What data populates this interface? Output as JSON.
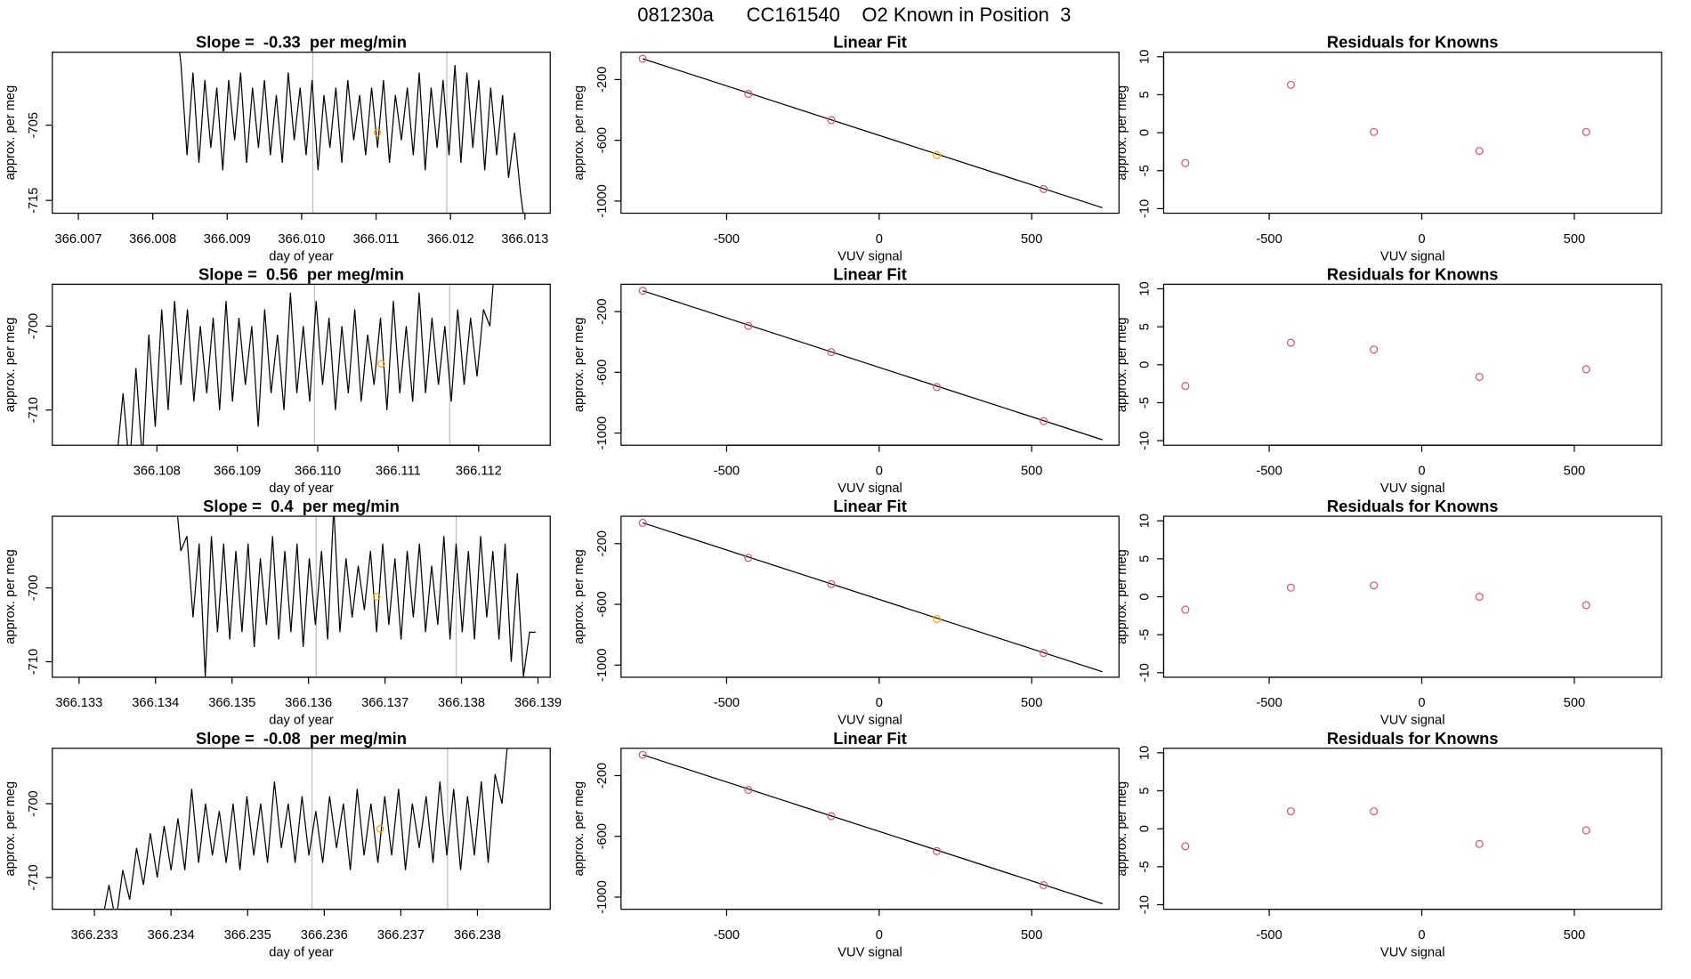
{
  "title": "081230a      CC161540    O2 Known in Position  3",
  "chart_data": [
    {
      "type": "line",
      "title": "Slope =  -0.33  per meg/min",
      "xlabel": "day of year",
      "ylabel": "approx. per meg",
      "color": "#000000",
      "x": [
        366.0083,
        366.00838,
        366.00846,
        366.00854,
        366.00862,
        366.0087,
        366.00878,
        366.00886,
        366.00894,
        366.00902,
        366.0091,
        366.00918,
        366.00926,
        366.00934,
        366.00942,
        366.0095,
        366.00958,
        366.00966,
        366.00974,
        366.00982,
        366.0099,
        366.00998,
        366.01006,
        366.01014,
        366.01022,
        366.0103,
        366.01038,
        366.01046,
        366.01054,
        366.01062,
        366.0107,
        366.01078,
        366.01086,
        366.01094,
        366.01102,
        366.0111,
        366.01118,
        366.01126,
        366.01134,
        366.01142,
        366.0115,
        366.01158,
        366.01166,
        366.01174,
        366.01182,
        366.0119,
        366.01198,
        366.01206,
        366.01214,
        366.01222,
        366.0123,
        366.01238,
        366.01246,
        366.01254,
        366.01262,
        366.0127,
        366.01278,
        366.01286,
        366.01294,
        366.01302
      ],
      "values": [
        -690,
        -697,
        -709,
        -698,
        -710,
        -699,
        -708,
        -700,
        -711,
        -699,
        -707,
        -698,
        -710,
        -700,
        -708,
        -699,
        -709,
        -701,
        -710,
        -698,
        -707,
        -700,
        -709,
        -699,
        -711,
        -701,
        -708,
        -700,
        -710,
        -699,
        -707,
        -701,
        -709,
        -700,
        -708,
        -699,
        -710,
        -701,
        -707,
        -700,
        -709,
        -698,
        -711,
        -700,
        -708,
        -699,
        -709,
        -697,
        -710,
        -698,
        -708,
        -699,
        -711,
        -700,
        -709,
        -701,
        -712,
        -706,
        -714,
        -720
      ],
      "xlim": [
        366.00665,
        366.01334
      ],
      "ylim": [
        -716.7,
        -695.3
      ],
      "xticks": [
        366.007,
        366.008,
        366.009,
        {
          "value": 366.01,
          "label": "366.010"
        },
        366.011,
        366.012,
        366.013
      ],
      "yticks": [
        -705,
        -715
      ],
      "vlines": [
        366.01015,
        366.01195
      ],
      "vline_color": "#bebebe",
      "highlight": {
        "x": 366.01102,
        "y": -706,
        "color": "#FFA500"
      }
    },
    {
      "type": "scatter",
      "title": "Linear Fit",
      "xlabel": "VUV signal",
      "ylabel": "approx. per meg",
      "x": [
        -775,
        -429,
        -157,
        189,
        539
      ],
      "values": [
        -63,
        -294,
        -467,
        -697,
        -921
      ],
      "colors": [
        "#DF536B",
        "#DF536B",
        "#DF536B",
        "#FFA500",
        "#DF536B"
      ],
      "fit": {
        "x": [
          -775,
          732
        ],
        "y": [
          -63,
          -1044
        ],
        "color": "#000000"
      },
      "xlim": [
        -846,
        786
      ],
      "ylim": [
        -1080,
        -20
      ],
      "xticks": [
        -500,
        0,
        500
      ],
      "yticks": [
        -200,
        -600,
        -1000
      ]
    },
    {
      "type": "scatter",
      "title": "Residuals for Knowns",
      "xlabel": "VUV signal",
      "ylabel": "approx. per meg",
      "x": [
        -775,
        -429,
        -157,
        189,
        539
      ],
      "values": [
        -4,
        6.3,
        0.1,
        -2.4,
        0.1
      ],
      "color": "#DF536B",
      "xlim": [
        -846,
        786
      ],
      "ylim": [
        -10.6,
        10.6
      ],
      "xticks": [
        -500,
        0,
        500
      ],
      "yticks": [
        10,
        5,
        0,
        -5,
        -10
      ]
    },
    {
      "type": "line",
      "title": "Slope =  0.56  per meg/min",
      "xlabel": "day of year",
      "ylabel": "approx. per meg",
      "color": "#000000",
      "x": [
        366.1075,
        366.10758,
        366.10766,
        366.10774,
        366.10782,
        366.1079,
        366.10798,
        366.10806,
        366.10814,
        366.10822,
        366.1083,
        366.10838,
        366.10846,
        366.10854,
        366.10862,
        366.1087,
        366.10878,
        366.10886,
        366.10894,
        366.10902,
        366.1091,
        366.10918,
        366.10926,
        366.10934,
        366.10942,
        366.1095,
        366.10958,
        366.10966,
        366.10974,
        366.10982,
        366.1099,
        366.10998,
        366.11006,
        366.11014,
        366.11022,
        366.1103,
        366.11038,
        366.11046,
        366.11054,
        366.11062,
        366.1107,
        366.11078,
        366.11086,
        366.11094,
        366.11102,
        366.1111,
        366.11118,
        366.11126,
        366.11134,
        366.11142,
        366.1115,
        366.11158,
        366.11166,
        366.11174,
        366.11182,
        366.1119,
        366.11198,
        366.11206,
        366.11214,
        366.11222
      ],
      "values": [
        -716,
        -708,
        -717,
        -705,
        -716,
        -701,
        -712,
        -698,
        -710,
        -697,
        -707,
        -698,
        -709,
        -700,
        -708,
        -699,
        -710,
        -697,
        -709,
        -699,
        -707,
        -700,
        -712,
        -698,
        -708,
        -701,
        -710,
        -696,
        -708,
        -700,
        -709,
        -697,
        -707,
        -699,
        -710,
        -700,
        -708,
        -698,
        -709,
        -701,
        -707,
        -699,
        -710,
        -697,
        -708,
        -700,
        -709,
        -696,
        -708,
        -699,
        -707,
        -700,
        -709,
        -698,
        -707,
        -699,
        -706,
        -698,
        -700,
        -690
      ],
      "xlim": [
        366.1067,
        366.11289
      ],
      "ylim": [
        -714.2,
        -695
      ],
      "xticks": [
        366.108,
        366.109,
        {
          "value": 366.11,
          "label": "366.110"
        },
        366.111,
        366.112
      ],
      "yticks": [
        -700,
        -710
      ],
      "vlines": [
        366.10996,
        366.11164
      ],
      "vline_color": "#bebebe",
      "highlight": {
        "x": 366.11079,
        "y": -704.5,
        "color": "#FFA500"
      }
    },
    {
      "type": "scatter",
      "title": "Linear Fit",
      "xlabel": "VUV signal",
      "ylabel": "approx. per meg",
      "x": [
        -775,
        -429,
        -157,
        189,
        539
      ],
      "values": [
        -63,
        -294,
        -467,
        -697,
        -921
      ],
      "colors": [
        "#DF536B",
        "#DF536B",
        "#DF536B",
        "#DF536B",
        "#DF536B"
      ],
      "fit": {
        "x": [
          -775,
          732
        ],
        "y": [
          -63,
          -1044
        ],
        "color": "#000000"
      },
      "xlim": [
        -846,
        786
      ],
      "ylim": [
        -1080,
        -20
      ],
      "xticks": [
        -500,
        0,
        500
      ],
      "yticks": [
        -200,
        -600,
        -1000
      ]
    },
    {
      "type": "scatter",
      "title": "Residuals for Knowns",
      "xlabel": "VUV signal",
      "ylabel": "approx. per meg",
      "x": [
        -775,
        -429,
        -157,
        189,
        539
      ],
      "values": [
        -2.8,
        2.9,
        2.0,
        -1.6,
        -0.6
      ],
      "color": "#DF536B",
      "xlim": [
        -846,
        786
      ],
      "ylim": [
        -10.6,
        10.6
      ],
      "xticks": [
        -500,
        0,
        500
      ],
      "yticks": [
        10,
        5,
        0,
        -5,
        -10
      ]
    },
    {
      "type": "line",
      "title": "Slope =  0.4  per meg/min",
      "xlabel": "day of year",
      "ylabel": "approx. per meg",
      "color": "#000000",
      "x": [
        366.13425,
        366.13433,
        366.13441,
        366.13449,
        366.13457,
        366.13465,
        366.13473,
        366.13481,
        366.13489,
        366.13497,
        366.13505,
        366.13513,
        366.13521,
        366.13529,
        366.13537,
        366.13545,
        366.13553,
        366.13561,
        366.13569,
        366.13577,
        366.13585,
        366.13593,
        366.13601,
        366.13609,
        366.13617,
        366.13625,
        366.13633,
        366.13641,
        366.13649,
        366.13657,
        366.13665,
        366.13673,
        366.13681,
        366.13689,
        366.13697,
        366.13705,
        366.13713,
        366.13721,
        366.13729,
        366.13737,
        366.13745,
        366.13753,
        366.13761,
        366.13769,
        366.13777,
        366.13785,
        366.13793,
        366.13801,
        366.13809,
        366.13817,
        366.13825,
        366.13833,
        366.13841,
        366.13849,
        366.13857,
        366.13865,
        366.13873,
        366.13881,
        366.13889,
        366.13897
      ],
      "values": [
        -686,
        -695,
        -693,
        -704,
        -694,
        -712,
        -693,
        -706,
        -694,
        -707,
        -695,
        -706,
        -694,
        -708,
        -696,
        -705,
        -693,
        -707,
        -695,
        -706,
        -694,
        -708,
        -696,
        -705,
        -695,
        -707,
        -689,
        -706,
        -696,
        -704,
        -697,
        -703,
        -695,
        -706,
        -694,
        -705,
        -696,
        -707,
        -695,
        -704,
        -694,
        -706,
        -697,
        -705,
        -693,
        -707,
        -694,
        -706,
        -695,
        -707,
        -693,
        -704,
        -695,
        -707,
        -694,
        -710,
        -698,
        -712,
        -706,
        -706
      ],
      "xlim": [
        366.13265,
        366.13916
      ],
      "ylim": [
        -712.1,
        -690.3
      ],
      "xticks": [
        366.133,
        366.134,
        366.135,
        366.136,
        366.137,
        366.138,
        366.139
      ],
      "yticks": [
        -700,
        -710
      ],
      "vlines": [
        366.1361,
        366.13793
      ],
      "vline_color": "#bebebe",
      "highlight": {
        "x": 366.13689,
        "y": -701.2,
        "color": "#FFA500"
      }
    },
    {
      "type": "scatter",
      "title": "Linear Fit",
      "xlabel": "VUV signal",
      "ylabel": "approx. per meg",
      "x": [
        -775,
        -429,
        -157,
        189,
        539
      ],
      "values": [
        -63,
        -294,
        -467,
        -697,
        -921
      ],
      "colors": [
        "#DF536B",
        "#DF536B",
        "#DF536B",
        "#FFA500",
        "#DF536B"
      ],
      "fit": {
        "x": [
          -775,
          732
        ],
        "y": [
          -63,
          -1044
        ],
        "color": "#000000"
      },
      "xlim": [
        -846,
        786
      ],
      "ylim": [
        -1080,
        -20
      ],
      "xticks": [
        -500,
        0,
        500
      ],
      "yticks": [
        -200,
        -600,
        -1000
      ]
    },
    {
      "type": "scatter",
      "title": "Residuals for Knowns",
      "xlabel": "VUV signal",
      "ylabel": "approx. per meg",
      "x": [
        -775,
        -429,
        -157,
        189,
        539
      ],
      "values": [
        -1.7,
        1.2,
        1.5,
        0.0,
        -1.1
      ],
      "color": "#DF536B",
      "xlim": [
        -846,
        786
      ],
      "ylim": [
        -10.6,
        10.6
      ],
      "xticks": [
        -500,
        0,
        500
      ],
      "yticks": [
        10,
        5,
        0,
        -5,
        -10
      ]
    },
    {
      "type": "line",
      "title": "Slope =  -0.08  per meg/min",
      "xlabel": "day of year",
      "ylabel": "approx. per meg",
      "color": "#000000",
      "x": [
        366.2331,
        366.23319,
        366.23328,
        366.23337,
        366.23346,
        366.23355,
        366.23364,
        366.23373,
        366.23382,
        366.23391,
        366.234,
        366.23409,
        366.23418,
        366.23427,
        366.23436,
        366.23445,
        366.23454,
        366.23463,
        366.23472,
        366.23481,
        366.2349,
        366.23499,
        366.23508,
        366.23517,
        366.23526,
        366.23535,
        366.23544,
        366.23553,
        366.23562,
        366.23571,
        366.2358,
        366.23589,
        366.23598,
        366.23607,
        366.23616,
        366.23625,
        366.23634,
        366.23643,
        366.23652,
        366.23661,
        366.2367,
        366.23679,
        366.23688,
        366.23697,
        366.23706,
        366.23715,
        366.23724,
        366.23733,
        366.23742,
        366.23751,
        366.2376,
        366.23769,
        366.23778,
        366.23787,
        366.23796,
        366.23805,
        366.23814,
        366.23823,
        366.23832,
        366.23841
      ],
      "values": [
        -716,
        -711,
        -716,
        -709,
        -713,
        -706,
        -711,
        -704,
        -710,
        -703,
        -709,
        -702,
        -709,
        -698,
        -708,
        -700,
        -707,
        -701,
        -708,
        -700,
        -709,
        -699,
        -707,
        -700,
        -708,
        -697,
        -706,
        -700,
        -708,
        -699,
        -707,
        -701,
        -708,
        -699,
        -706,
        -700,
        -709,
        -698,
        -707,
        -700,
        -708,
        -699,
        -707,
        -698,
        -709,
        -700,
        -706,
        -699,
        -708,
        -697,
        -707,
        -698,
        -709,
        -699,
        -707,
        -697,
        -708,
        -696,
        -700,
        -690
      ],
      "xlim": [
        366.23245,
        366.23895
      ],
      "ylim": [
        -714.3,
        -692.5
      ],
      "xticks": [
        366.233,
        366.234,
        366.235,
        366.236,
        366.237,
        366.238
      ],
      "yticks": [
        -700,
        -710
      ],
      "vlines": [
        366.23584,
        366.23761
      ],
      "vline_color": "#bebebe",
      "highlight": {
        "x": 366.23673,
        "y": -703.4,
        "color": "#FFA500"
      }
    },
    {
      "type": "scatter",
      "title": "Linear Fit",
      "xlabel": "VUV signal",
      "ylabel": "approx. per meg",
      "x": [
        -775,
        -429,
        -157,
        189,
        539
      ],
      "values": [
        -63,
        -294,
        -467,
        -697,
        -921
      ],
      "colors": [
        "#DF536B",
        "#DF536B",
        "#DF536B",
        "#DF536B",
        "#DF536B"
      ],
      "fit": {
        "x": [
          -775,
          732
        ],
        "y": [
          -63,
          -1044
        ],
        "color": "#000000"
      },
      "xlim": [
        -846,
        786
      ],
      "ylim": [
        -1080,
        -20
      ],
      "xticks": [
        -500,
        0,
        500
      ],
      "yticks": [
        -200,
        -600,
        -1000
      ]
    },
    {
      "type": "scatter",
      "title": "Residuals for Knowns",
      "xlabel": "VUV signal",
      "ylabel": "approx. per meg",
      "x": [
        -775,
        -429,
        -157,
        189,
        539
      ],
      "values": [
        -2.3,
        2.3,
        2.3,
        -2.0,
        -0.2
      ],
      "color": "#DF536B",
      "xlim": [
        -846,
        786
      ],
      "ylim": [
        -10.6,
        10.6
      ],
      "xticks": [
        -500,
        0,
        500
      ],
      "yticks": [
        10,
        5,
        0,
        -5,
        -10
      ]
    }
  ]
}
